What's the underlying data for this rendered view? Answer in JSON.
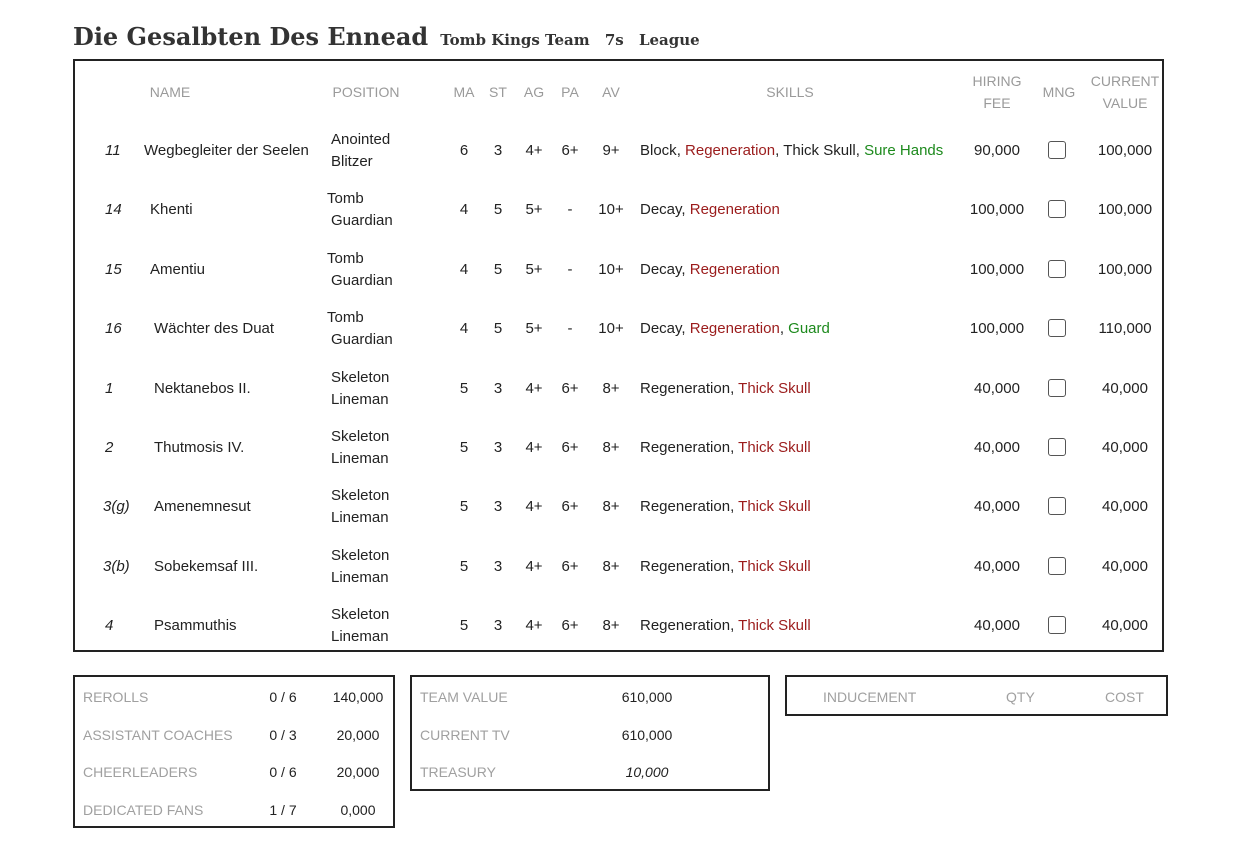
{
  "team": {
    "name": "Die Gesalbten Des Ennead",
    "race": "Tomb Kings Team",
    "format": "7s",
    "type": "League"
  },
  "columns": {
    "name": "NAME",
    "position": "POSITION",
    "ma": "MA",
    "st": "ST",
    "ag": "AG",
    "pa": "PA",
    "av": "AV",
    "skills": "SKILLS",
    "hiring_fee_1": "HIRING",
    "hiring_fee_2": "FEE",
    "mng": "MNG",
    "current_value_1": "CURRENT",
    "current_value_2": "VALUE"
  },
  "players": [
    {
      "num": "11",
      "name": "Wegbegleiter der Seelen",
      "pos1": "Anointed",
      "pos2": "Blitzer",
      "ma": "6",
      "st": "3",
      "ag": "4+",
      "pa": "6+",
      "av": "9+",
      "skills": [
        {
          "t": "Block",
          "c": "n"
        },
        {
          "t": "Regeneration",
          "c": "r"
        },
        {
          "t": "Thick Skull",
          "c": "n"
        },
        {
          "t": "Sure Hands",
          "c": "g"
        }
      ],
      "fee": "90,000",
      "value": "100,000"
    },
    {
      "num": "14",
      "name": "Khenti",
      "pos1": "Tomb",
      "pos2": "Guardian",
      "ma": "4",
      "st": "5",
      "ag": "5+",
      "pa": "-",
      "av": "10+",
      "skills": [
        {
          "t": "Decay",
          "c": "n"
        },
        {
          "t": "Regeneration",
          "c": "r"
        }
      ],
      "fee": "100,000",
      "value": "100,000"
    },
    {
      "num": "15",
      "name": "Amentiu",
      "pos1": "Tomb",
      "pos2": "Guardian",
      "ma": "4",
      "st": "5",
      "ag": "5+",
      "pa": "-",
      "av": "10+",
      "skills": [
        {
          "t": "Decay",
          "c": "n"
        },
        {
          "t": "Regeneration",
          "c": "r"
        }
      ],
      "fee": "100,000",
      "value": "100,000"
    },
    {
      "num": "16",
      "name": "Wächter des Duat",
      "pos1": "Tomb",
      "pos2": "Guardian",
      "ma": "4",
      "st": "5",
      "ag": "5+",
      "pa": "-",
      "av": "10+",
      "skills": [
        {
          "t": "Decay",
          "c": "n"
        },
        {
          "t": "Regeneration",
          "c": "r"
        },
        {
          "t": "Guard",
          "c": "g"
        }
      ],
      "fee": "100,000",
      "value": "110,000"
    },
    {
      "num": "1",
      "name": "Nektanebos II.",
      "pos1": "Skeleton",
      "pos2": "Lineman",
      "ma": "5",
      "st": "3",
      "ag": "4+",
      "pa": "6+",
      "av": "8+",
      "skills": [
        {
          "t": "Regeneration",
          "c": "n"
        },
        {
          "t": "Thick Skull",
          "c": "r"
        }
      ],
      "fee": "40,000",
      "value": "40,000"
    },
    {
      "num": "2",
      "name": "Thutmosis IV.",
      "pos1": "Skeleton",
      "pos2": "Lineman",
      "ma": "5",
      "st": "3",
      "ag": "4+",
      "pa": "6+",
      "av": "8+",
      "skills": [
        {
          "t": "Regeneration",
          "c": "n"
        },
        {
          "t": "Thick Skull",
          "c": "r"
        }
      ],
      "fee": "40,000",
      "value": "40,000"
    },
    {
      "num": "3(g)",
      "name": "Amenemnesut",
      "pos1": "Skeleton",
      "pos2": "Lineman",
      "ma": "5",
      "st": "3",
      "ag": "4+",
      "pa": "6+",
      "av": "8+",
      "skills": [
        {
          "t": "Regeneration",
          "c": "n"
        },
        {
          "t": "Thick Skull",
          "c": "r"
        }
      ],
      "fee": "40,000",
      "value": "40,000"
    },
    {
      "num": "3(b)",
      "name": "Sobekemsaf III.",
      "pos1": "Skeleton",
      "pos2": "Lineman",
      "ma": "5",
      "st": "3",
      "ag": "4+",
      "pa": "6+",
      "av": "8+",
      "skills": [
        {
          "t": "Regeneration",
          "c": "n"
        },
        {
          "t": "Thick Skull",
          "c": "r"
        }
      ],
      "fee": "40,000",
      "value": "40,000"
    },
    {
      "num": "4",
      "name": "Psammuthis",
      "pos1": "Skeleton",
      "pos2": "Lineman",
      "ma": "5",
      "st": "3",
      "ag": "4+",
      "pa": "6+",
      "av": "8+",
      "skills": [
        {
          "t": "Regeneration",
          "c": "n"
        },
        {
          "t": "Thick Skull",
          "c": "r"
        }
      ],
      "fee": "40,000",
      "value": "40,000"
    }
  ],
  "extras": [
    {
      "label": "REROLLS",
      "count": "0 / 6",
      "cost": "140,000"
    },
    {
      "label": "ASSISTANT COACHES",
      "count": "0 / 3",
      "cost": "20,000"
    },
    {
      "label": "CHEERLEADERS",
      "count": "0 / 6",
      "cost": "20,000"
    },
    {
      "label": "DEDICATED FANS",
      "count": "1 / 7",
      "cost": "0,000"
    }
  ],
  "values": [
    {
      "label": "TEAM VALUE",
      "value": "610,000"
    },
    {
      "label": "CURRENT TV",
      "value": "610,000"
    },
    {
      "label": "TREASURY",
      "value": "10,000"
    }
  ],
  "inducements": {
    "col_inducement": "INDUCEMENT",
    "col_qty": "QTY",
    "col_cost": "COST"
  },
  "colors": {
    "skill_red": "#9b1c1c",
    "skill_green": "#1d8a1d",
    "label_gray": "#9a9a9a",
    "border": "#222222"
  },
  "icons": {
    "mng": "checkbox-icon"
  }
}
